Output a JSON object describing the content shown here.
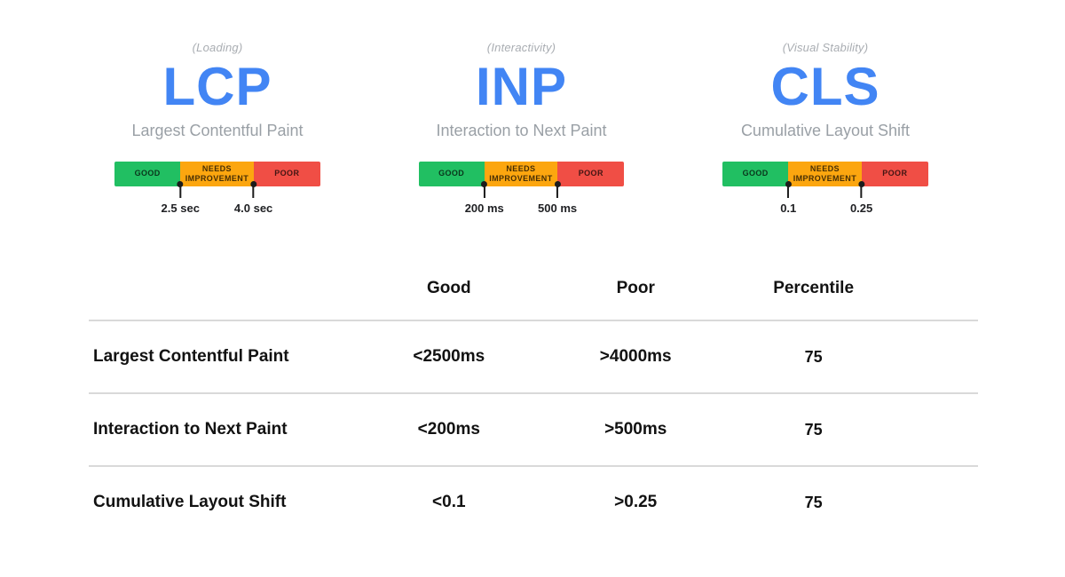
{
  "colors": {
    "metric_blue": "#4285F4",
    "good_green": "#21BF62",
    "ni_orange": "#FCA60F",
    "poor_red": "#F04E45",
    "table_line": "#D9D9D9"
  },
  "cards": [
    {
      "category": "(Loading)",
      "abbr": "LCP",
      "name": "Largest Contentful Paint",
      "scale": {
        "good_label": "GOOD",
        "needs_improvement_label": "NEEDS IMPROVEMENT",
        "poor_label": "POOR",
        "threshold1": "2.5 sec",
        "threshold2": "4.0 sec"
      }
    },
    {
      "category": "(Interactivity)",
      "abbr": "INP",
      "name": "Interaction to Next Paint",
      "scale": {
        "good_label": "GOOD",
        "needs_improvement_label": "NEEDS IMPROVEMENT",
        "poor_label": "POOR",
        "threshold1": "200 ms",
        "threshold2": "500 ms"
      }
    },
    {
      "category": "(Visual Stability)",
      "abbr": "CLS",
      "name": "Cumulative Layout Shift",
      "scale": {
        "good_label": "GOOD",
        "needs_improvement_label": "NEEDS IMPROVEMENT",
        "poor_label": "POOR",
        "threshold1": "0.1",
        "threshold2": "0.25"
      }
    }
  ],
  "table": {
    "headers": {
      "good": "Good",
      "poor": "Poor",
      "percentile": "Percentile"
    },
    "rows": [
      {
        "metric": "Largest Contentful Paint",
        "good": "<2500ms",
        "poor": ">4000ms",
        "percentile": "75"
      },
      {
        "metric": "Interaction to Next Paint",
        "good": "<200ms",
        "poor": ">500ms",
        "percentile": "75"
      },
      {
        "metric": "Cumulative Layout Shift",
        "good": "<0.1",
        "poor": ">0.25",
        "percentile": "75"
      }
    ]
  }
}
